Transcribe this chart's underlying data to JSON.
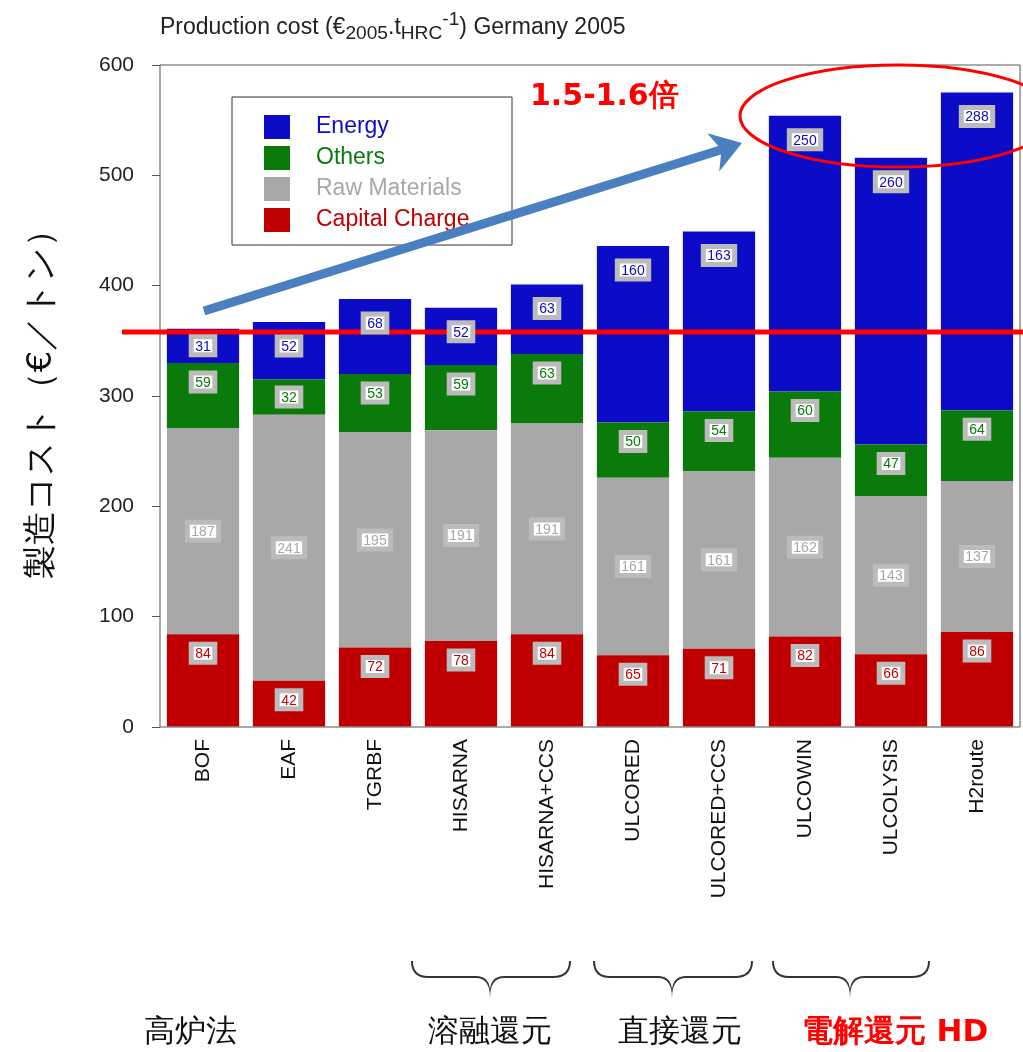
{
  "chart_data": {
    "type": "bar",
    "stacked": true,
    "title": "Production cost (€$_{2005}$.t$_{HRC}$$^{-1}$) Germany 2005",
    "ylabel": "製造コスト（€／トン）",
    "categories": [
      "BOF",
      "EAF",
      "TGRBF",
      "HISARNA",
      "HISARNA+CCS",
      "ULCORED",
      "ULCORED+CCS",
      "ULCOWIN",
      "ULCOLYSIS",
      "H2route"
    ],
    "series": [
      {
        "name": "Capital Charge",
        "color": "#c00000",
        "values": [
          84,
          42,
          72,
          78,
          84,
          65,
          71,
          82,
          66,
          86
        ]
      },
      {
        "name": "Raw Materials",
        "color": "#a8a8a8",
        "values": [
          187,
          241,
          195,
          191,
          191,
          161,
          161,
          162,
          143,
          137
        ]
      },
      {
        "name": "Others",
        "color": "#0a7a0a",
        "values": [
          59,
          32,
          53,
          59,
          63,
          50,
          54,
          60,
          47,
          64
        ]
      },
      {
        "name": "Energy",
        "color": "#0c0cc8",
        "values": [
          31,
          52,
          68,
          52,
          63,
          160,
          163,
          250,
          260,
          288
        ]
      }
    ],
    "ylim": [
      0,
      600
    ],
    "yticks": [
      0,
      100,
      200,
      300,
      400,
      500,
      600
    ],
    "grid": false,
    "legend": "top left",
    "data_labels": true,
    "ref_lines": [
      {
        "axis": "y",
        "value": 358,
        "color": "#ff0000"
      }
    ],
    "annotations": [
      "1.5-1.6倍",
      "高炉法",
      "溶融還元",
      "直接還元",
      "電解還元 HD"
    ]
  }
}
